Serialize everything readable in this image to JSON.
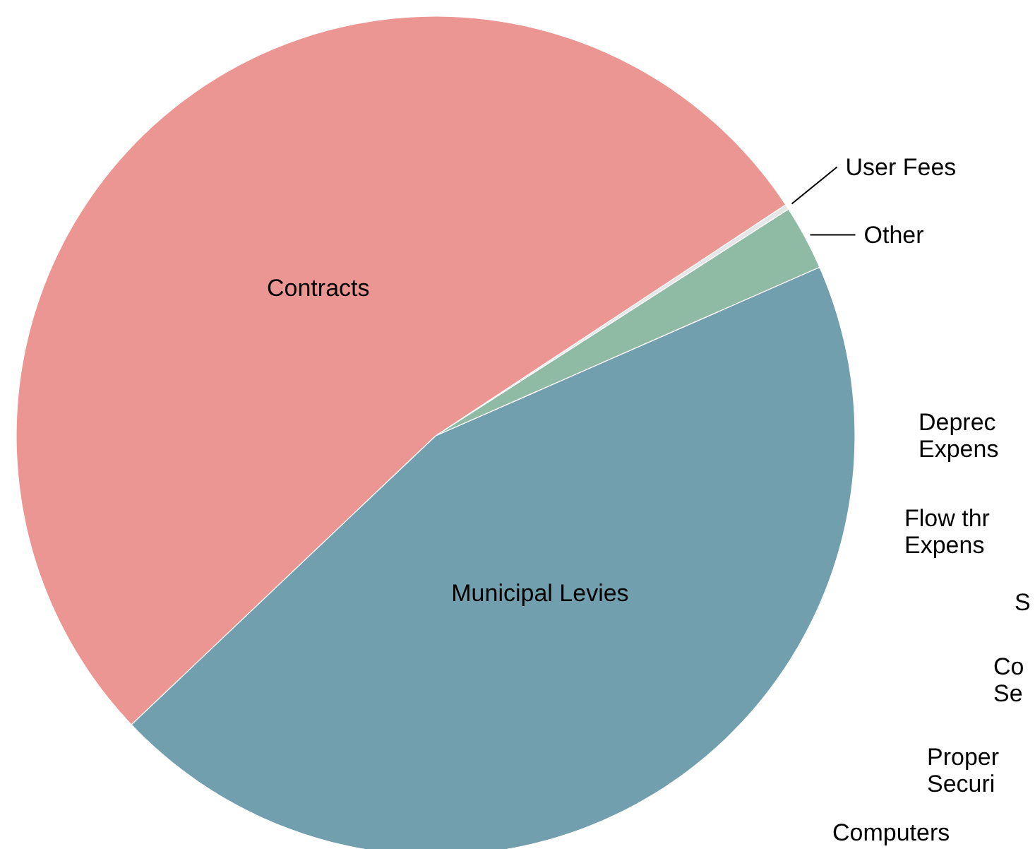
{
  "chart_data": {
    "type": "pie",
    "categories": [
      "Municipal Levies",
      "Other",
      "User Fees",
      "Contracts"
    ],
    "values": [
      44.5,
      2.5,
      0.2,
      52.8
    ],
    "colors": [
      "#729fae",
      "#8fbba5",
      "#e6e6e6",
      "#ec9693"
    ],
    "annotations": [
      "Deprec\nExpens",
      "Flow thr\nExpens",
      "S",
      "Co\nSe",
      "Proper\nSecuri",
      "Computers"
    ]
  }
}
